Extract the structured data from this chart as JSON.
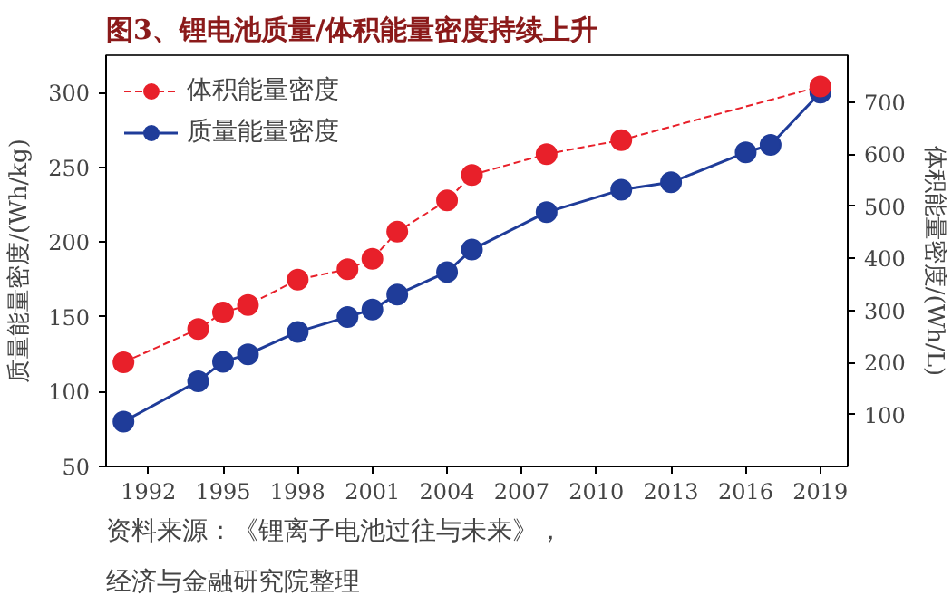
{
  "chart_data": {
    "type": "line",
    "title": "图3、锂电池质量/体积能量密度持续上升",
    "ylabel": "质量能量密度/(Wh/kg)",
    "y2label": "体积能量密度/(Wh/L)",
    "annotations": [
      "资料来源：《锂离子电池过往与未来》，",
      "经济与金融研究院整理"
    ],
    "xlim": [
      1990.3,
      2020.1
    ],
    "xticks": [
      1992,
      1995,
      1998,
      2001,
      2004,
      2007,
      2010,
      2013,
      2016,
      2019
    ],
    "ylim": [
      50,
      325
    ],
    "yticks": [
      50,
      100,
      150,
      200,
      250,
      300
    ],
    "y2lim": [
      0,
      790
    ],
    "y2ticks": [
      100,
      200,
      300,
      400,
      500,
      600,
      700
    ],
    "grid": false,
    "legend": "top left",
    "marker": "circle",
    "series": [
      {
        "name": "体积能量密度",
        "color": "#e8202a",
        "axis": "y2",
        "line_style": "dashed",
        "x": [
          1991,
          1994,
          1995,
          1996,
          1998,
          2000,
          2001,
          2002,
          2004,
          2005,
          2008,
          2011,
          2019
        ],
        "values": [
          200,
          264,
          296,
          310,
          359,
          379,
          399,
          451,
          511,
          560,
          600,
          627,
          730
        ]
      },
      {
        "name": "质量能量密度",
        "color": "#1f3c99",
        "axis": "y",
        "line_style": "solid",
        "x": [
          1991,
          1994,
          1995,
          1996,
          1998,
          2000,
          2001,
          2002,
          2004,
          2005,
          2008,
          2011,
          2013,
          2016,
          2017,
          2019
        ],
        "values": [
          80,
          107,
          120,
          125,
          140,
          150,
          155,
          165,
          180,
          195,
          220,
          235,
          240,
          260,
          265,
          300
        ]
      }
    ]
  }
}
